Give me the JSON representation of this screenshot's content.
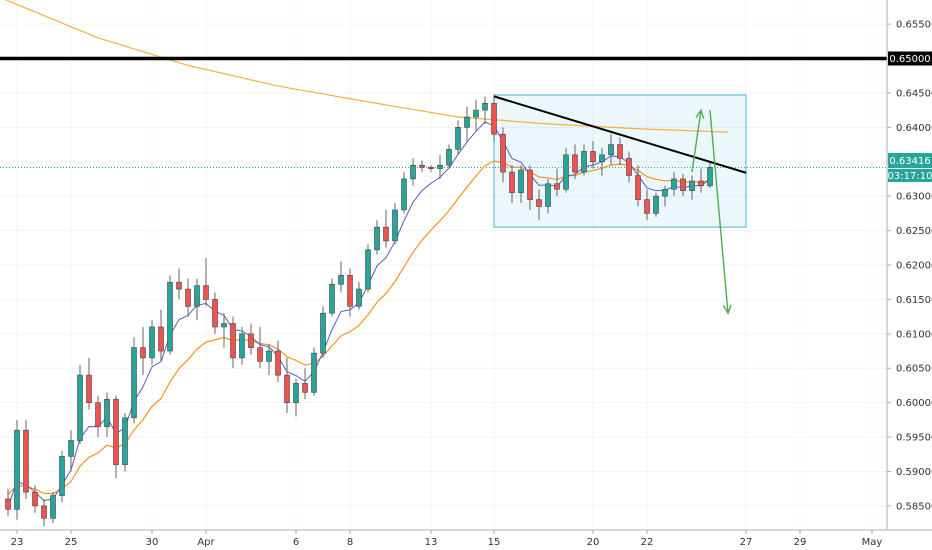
{
  "chart_data": {
    "type": "candlestick",
    "title": "",
    "xlabel": "",
    "ylabel": "",
    "ylim": [
      0.5815,
      0.6585
    ],
    "price_axis": {
      "ticks": [
        "0.65500",
        "0.65000",
        "0.64500",
        "0.64000",
        "0.63500",
        "0.63000",
        "0.62500",
        "0.62000",
        "0.61500",
        "0.61000",
        "0.60500",
        "0.60000",
        "0.59500",
        "0.59000",
        "0.58500"
      ],
      "tick_values": [
        0.655,
        0.65,
        0.645,
        0.64,
        0.635,
        0.63,
        0.625,
        0.62,
        0.615,
        0.61,
        0.605,
        0.6,
        0.595,
        0.59,
        0.585
      ]
    },
    "time_axis": {
      "labels": [
        "23",
        "25",
        "30",
        "Apr",
        "6",
        "8",
        "13",
        "15",
        "20",
        "22",
        "27",
        "29",
        "May"
      ],
      "label_bar_index": [
        1,
        7,
        16,
        22,
        32,
        38,
        47,
        54,
        65,
        71,
        82,
        88,
        96
      ]
    },
    "current_price": {
      "value": 0.63416,
      "label": "0.63416",
      "countdown": "03:17:10",
      "color": "#26a69a"
    },
    "colors": {
      "up": "#26a69a",
      "down": "#ef5350",
      "wick": "#666666",
      "ema_fast": "#5b5bbf",
      "ema_slow": "#f7931e",
      "ma_long": "#f5b041",
      "pattern_box": "#5bc0de",
      "arrow": "#4caf50"
    },
    "annotations": {
      "resistance_level": 0.65,
      "trendline": {
        "from": {
          "bar": 54,
          "price": 0.6445
        },
        "to": {
          "bar": 82,
          "price": 0.6334
        }
      },
      "range_box": {
        "from_bar": 54,
        "to_bar": 82,
        "top": 0.6447,
        "bottom": 0.6255
      },
      "arrow_up": {
        "from": {
          "bar": 76,
          "price": 0.6335
        },
        "to": {
          "bar": 77,
          "price": 0.6425
        }
      },
      "arrow_down": {
        "from": {
          "bar": 78,
          "price": 0.6425
        },
        "to": {
          "bar": 80,
          "price": 0.613
        }
      }
    },
    "ma_long": [
      [
        -3,
        0.66
      ],
      [
        10,
        0.653
      ],
      [
        20,
        0.649
      ],
      [
        30,
        0.646
      ],
      [
        40,
        0.6437
      ],
      [
        50,
        0.6415
      ],
      [
        60,
        0.6405
      ],
      [
        70,
        0.6398
      ],
      [
        80,
        0.6393
      ]
    ],
    "candles": [
      [
        0.586,
        0.5875,
        0.5835,
        0.5845
      ],
      [
        0.5845,
        0.5975,
        0.583,
        0.596
      ],
      [
        0.596,
        0.5975,
        0.586,
        0.587
      ],
      [
        0.587,
        0.588,
        0.584,
        0.585
      ],
      [
        0.585,
        0.586,
        0.582,
        0.5832
      ],
      [
        0.5832,
        0.587,
        0.5825,
        0.5865
      ],
      [
        0.5865,
        0.593,
        0.5855,
        0.5922
      ],
      [
        0.5922,
        0.596,
        0.59,
        0.5945
      ],
      [
        0.5945,
        0.6055,
        0.594,
        0.604
      ],
      [
        0.604,
        0.6065,
        0.599,
        0.6
      ],
      [
        0.6,
        0.601,
        0.595,
        0.5965
      ],
      [
        0.5965,
        0.6015,
        0.595,
        0.6005
      ],
      [
        0.6005,
        0.601,
        0.589,
        0.591
      ],
      [
        0.591,
        0.5985,
        0.59,
        0.5978
      ],
      [
        0.5978,
        0.6095,
        0.597,
        0.608
      ],
      [
        0.608,
        0.611,
        0.604,
        0.6065
      ],
      [
        0.6065,
        0.612,
        0.6055,
        0.611
      ],
      [
        0.611,
        0.6135,
        0.606,
        0.6075
      ],
      [
        0.6075,
        0.6185,
        0.607,
        0.6175
      ],
      [
        0.6175,
        0.6195,
        0.615,
        0.6165
      ],
      [
        0.6165,
        0.618,
        0.6125,
        0.614
      ],
      [
        0.614,
        0.618,
        0.612,
        0.617
      ],
      [
        0.617,
        0.621,
        0.614,
        0.615
      ],
      [
        0.615,
        0.616,
        0.61,
        0.611
      ],
      [
        0.611,
        0.613,
        0.608,
        0.6115
      ],
      [
        0.6115,
        0.6125,
        0.605,
        0.6065
      ],
      [
        0.6065,
        0.611,
        0.6055,
        0.61
      ],
      [
        0.61,
        0.6115,
        0.607,
        0.608
      ],
      [
        0.608,
        0.611,
        0.605,
        0.606
      ],
      [
        0.606,
        0.6085,
        0.604,
        0.6075
      ],
      [
        0.6075,
        0.609,
        0.603,
        0.604
      ],
      [
        0.604,
        0.6065,
        0.5985,
        0.6
      ],
      [
        0.6,
        0.6035,
        0.598,
        0.6028
      ],
      [
        0.6028,
        0.605,
        0.6005,
        0.6015
      ],
      [
        0.6015,
        0.608,
        0.601,
        0.6072
      ],
      [
        0.6072,
        0.614,
        0.6065,
        0.613
      ],
      [
        0.613,
        0.618,
        0.6125,
        0.6172
      ],
      [
        0.6172,
        0.6205,
        0.616,
        0.6185
      ],
      [
        0.6185,
        0.6195,
        0.6125,
        0.614
      ],
      [
        0.614,
        0.6175,
        0.6135,
        0.6165
      ],
      [
        0.6165,
        0.623,
        0.616,
        0.6222
      ],
      [
        0.6222,
        0.6265,
        0.6215,
        0.6255
      ],
      [
        0.6255,
        0.628,
        0.6225,
        0.6235
      ],
      [
        0.6235,
        0.629,
        0.623,
        0.628
      ],
      [
        0.628,
        0.6335,
        0.6275,
        0.6325
      ],
      [
        0.6325,
        0.6355,
        0.6315,
        0.6345
      ],
      [
        0.6345,
        0.6352,
        0.6335,
        0.6342
      ],
      [
        0.6342,
        0.6345,
        0.6335,
        0.634
      ],
      [
        0.634,
        0.636,
        0.6325,
        0.6345
      ],
      [
        0.6345,
        0.6375,
        0.634,
        0.6368
      ],
      [
        0.6368,
        0.641,
        0.636,
        0.64
      ],
      [
        0.64,
        0.643,
        0.638,
        0.6415
      ],
      [
        0.6415,
        0.644,
        0.6395,
        0.6425
      ],
      [
        0.6425,
        0.6445,
        0.6405,
        0.6435
      ],
      [
        0.6435,
        0.6445,
        0.638,
        0.639
      ],
      [
        0.639,
        0.64,
        0.632,
        0.6335
      ],
      [
        0.6335,
        0.6345,
        0.629,
        0.6305
      ],
      [
        0.6305,
        0.6345,
        0.629,
        0.6338
      ],
      [
        0.6338,
        0.6345,
        0.628,
        0.6295
      ],
      [
        0.6295,
        0.631,
        0.6265,
        0.6285
      ],
      [
        0.6285,
        0.6325,
        0.6275,
        0.6318
      ],
      [
        0.6318,
        0.634,
        0.63,
        0.631
      ],
      [
        0.631,
        0.637,
        0.6305,
        0.636
      ],
      [
        0.636,
        0.6375,
        0.6325,
        0.6335
      ],
      [
        0.6335,
        0.6375,
        0.633,
        0.6365
      ],
      [
        0.6365,
        0.638,
        0.634,
        0.635
      ],
      [
        0.635,
        0.637,
        0.633,
        0.636
      ],
      [
        0.636,
        0.639,
        0.6345,
        0.6375
      ],
      [
        0.6375,
        0.6385,
        0.6345,
        0.6355
      ],
      [
        0.6355,
        0.6365,
        0.632,
        0.633
      ],
      [
        0.633,
        0.6345,
        0.6285,
        0.6295
      ],
      [
        0.6295,
        0.631,
        0.6265,
        0.6275
      ],
      [
        0.6275,
        0.6305,
        0.627,
        0.63
      ],
      [
        0.63,
        0.6315,
        0.6285,
        0.631
      ],
      [
        0.631,
        0.6335,
        0.63,
        0.6325
      ],
      [
        0.6325,
        0.6332,
        0.63,
        0.6308
      ],
      [
        0.6308,
        0.633,
        0.6295,
        0.6322
      ],
      [
        0.6322,
        0.634,
        0.6305,
        0.6315
      ],
      [
        0.6315,
        0.635,
        0.6312,
        0.6342
      ]
    ]
  }
}
